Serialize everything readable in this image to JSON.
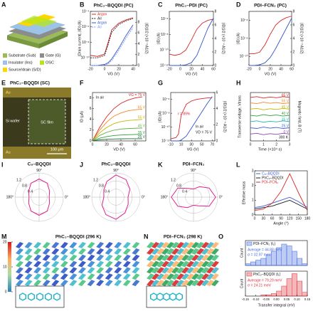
{
  "panels": {
    "A": {
      "label": "A",
      "legend": [
        {
          "name": "Substrate (Sub)",
          "color": "#9bbb59"
        },
        {
          "name": "Gate (G)",
          "color": "#8c8c8c"
        },
        {
          "name": "Insulator (Ins)",
          "color": "#9dc3e6"
        },
        {
          "name": "OSC",
          "color": "#b5e61d"
        },
        {
          "name": "Source/drain (S/D)",
          "color": "#ffd700"
        }
      ]
    },
    "B": {
      "label": "B",
      "type": "line",
      "title": "PhC₂–BQQDI (PC)",
      "x_label": "VG (V)",
      "y_label": "|Drain current|, |ID| (A)",
      "y2_label": "|ID|1/2 (×10⁻³ A1/2)",
      "log_y": true,
      "legend": "upper left",
      "x": [
        -20,
        -10,
        0,
        5,
        10,
        20,
        30,
        40
      ],
      "xlim": [
        -20,
        45
      ],
      "xticks": [
        -20,
        0,
        20,
        40
      ],
      "ylim": [
        1e-11,
        0.0001
      ],
      "yticks": [
        {
          "value": 1e-10,
          "label": "10⁻¹⁰"
        },
        {
          "value": 1e-08,
          "label": "10⁻⁸"
        },
        {
          "value": 1e-06,
          "label": "10⁻⁶"
        },
        {
          "value": 0.0001,
          "label": "10⁻⁴"
        }
      ],
      "y2lim": [
        0,
        10
      ],
      "y2ticks": [
        0,
        2,
        4,
        6,
        8
      ],
      "series": [
        {
          "name": "Argon",
          "color": "#d62728",
          "values": [
            2e-10,
            1.5e-10,
            3e-10,
            1e-08,
            4e-07,
            3e-06,
            8e-06,
            1.5e-05
          ]
        },
        {
          "name": "Air",
          "color": "#1a1a1a",
          "dash": true,
          "values": [
            1e-10,
            1e-10,
            2e-10,
            5e-09,
            2e-07,
            2e-06,
            6e-06,
            1.2e-05
          ]
        },
        {
          "name": "Argon",
          "color": "#3355cc",
          "axis": "y2",
          "values": [
            0,
            0,
            0.2,
            0.5,
            1.2,
            3.2,
            5.5,
            7.5
          ]
        },
        {
          "name": "Air",
          "color": "#7799ee",
          "axis": "y2",
          "dash": true,
          "values": [
            0,
            0,
            0.1,
            0.3,
            0.9,
            2.8,
            5,
            7
          ]
        }
      ]
    },
    "C": {
      "label": "C",
      "type": "line",
      "title": "PhC₂–PDI (PC)",
      "x_label": "VG (V)",
      "y_label": "|ID| (A)",
      "y2_label": "|ID|1/2 (×10⁻⁴ A1/2)",
      "log_y": true,
      "x": [
        -20,
        -10,
        0,
        10,
        20,
        30,
        40,
        50,
        60
      ],
      "xlim": [
        -20,
        60
      ],
      "xticks": [
        -20,
        0,
        20,
        40,
        60
      ],
      "ylim": [
        1e-12,
        1e-05
      ],
      "yticks": [
        {
          "value": 1e-12,
          "label": "10⁻¹²"
        },
        {
          "value": 1e-10,
          "label": "10⁻¹⁰"
        },
        {
          "value": 1e-08,
          "label": "10⁻⁸"
        },
        {
          "value": 1e-06,
          "label": "10⁻⁶"
        }
      ],
      "y2lim": [
        0,
        8
      ],
      "y2ticks": [
        0,
        2,
        4,
        6,
        8
      ],
      "series": [
        {
          "color": "#d62728",
          "values": [
            3e-11,
            2e-11,
            3e-11,
            1e-10,
            2e-09,
            5e-08,
            3e-07,
            7e-07,
            1e-06
          ]
        },
        {
          "color": "#3355cc",
          "axis": "y2",
          "values": [
            0,
            0,
            0,
            0.1,
            0.4,
            1.5,
            3.5,
            5.5,
            7
          ]
        }
      ]
    },
    "D": {
      "label": "D",
      "type": "line",
      "title": "PDI–FCN₂ (PC)",
      "x_label": "VG (V)",
      "y_label": "|ID| (A)",
      "y2_label": "|ID|1/2 (×10⁻³ A1/2)",
      "log_y": true,
      "x": [
        -20,
        -10,
        0,
        10,
        20,
        30,
        40,
        50,
        60
      ],
      "xlim": [
        -20,
        60
      ],
      "xticks": [
        -20,
        0,
        20,
        40,
        60
      ],
      "ylim": [
        1e-11,
        1e-05
      ],
      "yticks": [
        {
          "value": 1e-10,
          "label": "10⁻¹⁰"
        },
        {
          "value": 1e-08,
          "label": "10⁻⁸"
        },
        {
          "value": 1e-06,
          "label": "10⁻⁶"
        }
      ],
      "y2lim": [
        0,
        8
      ],
      "y2ticks": [
        0,
        2,
        4,
        6,
        8
      ],
      "series": [
        {
          "color": "#d62728",
          "values": [
            2e-10,
            2e-10,
            3e-10,
            2e-09,
            3e-08,
            3e-07,
            1e-06,
            2e-06,
            3e-06
          ]
        },
        {
          "color": "#3355cc",
          "axis": "y2",
          "values": [
            0,
            0,
            0.1,
            0.4,
            1.2,
            2.5,
            4,
            5.5,
            7
          ]
        }
      ]
    },
    "E": {
      "label": "E",
      "title": "PhC₂–BQQDI (SC)",
      "labels": {
        "au_top": "Au",
        "wafer": "Si wafer",
        "film": "SC film",
        "au_bottom": "Au",
        "scale": "100 μm"
      }
    },
    "F": {
      "label": "F",
      "type": "line",
      "x_label": "VD (V)",
      "y_label": "ID (μA)",
      "legend": "line-end",
      "annotations": [
        "In air"
      ],
      "x": [
        0,
        10,
        20,
        30,
        40,
        50,
        60,
        70
      ],
      "xlim": [
        0,
        75
      ],
      "xticks": [
        0,
        20,
        40,
        60
      ],
      "ylim": [
        0,
        9
      ],
      "yticks": [
        0,
        2,
        4,
        6,
        8
      ],
      "series": [
        {
          "name": "VG = 75 V",
          "color": "#d62728",
          "values": [
            0,
            2.5,
            4.5,
            6,
            7,
            7.6,
            8,
            8.2
          ]
        },
        {
          "name": "65 V",
          "color": "#f08a24",
          "values": [
            0,
            2,
            3.5,
            4.6,
            5.2,
            5.6,
            5.8,
            5.9
          ]
        },
        {
          "name": "55 V",
          "color": "#c8b400",
          "values": [
            0,
            1.5,
            2.5,
            3.2,
            3.6,
            3.8,
            3.9,
            4
          ]
        },
        {
          "name": "45 V",
          "color": "#6ab04c",
          "values": [
            0,
            1,
            1.6,
            2,
            2.2,
            2.3,
            2.35,
            2.4
          ]
        },
        {
          "name": "35 V",
          "color": "#2e9e3e",
          "values": [
            0,
            0.5,
            0.8,
            1,
            1.1,
            1.15,
            1.2,
            1.2
          ]
        },
        {
          "name": "25 V",
          "color": "#1f6f3a",
          "values": [
            0,
            0.2,
            0.3,
            0.35,
            0.38,
            0.4,
            0.4,
            0.4
          ]
        }
      ]
    },
    "G": {
      "label": "G",
      "type": "line",
      "x_label": "VG (V)",
      "y_label": "|ID| (A)",
      "y2_label": "|ID|1/2 (×10⁻⁴ A1/2)",
      "log_y": true,
      "annotations": [
        "r = 89%",
        "In air",
        "VD = 75 V"
      ],
      "x": [
        -10,
        0,
        5,
        10,
        20,
        30,
        40,
        50,
        60,
        70
      ],
      "xlim": [
        -10,
        75
      ],
      "xticks": [
        -10,
        10,
        30,
        50,
        70
      ],
      "ylim": [
        1e-12,
        1e-05
      ],
      "yticks": [
        {
          "value": 1e-12,
          "label": "10⁻¹²"
        },
        {
          "value": 1e-10,
          "label": "10⁻¹⁰"
        },
        {
          "value": 1e-08,
          "label": "10⁻⁸"
        },
        {
          "value": 1e-06,
          "label": "10⁻⁶"
        }
      ],
      "y2lim": [
        0,
        6
      ],
      "y2ticks": [
        0,
        2,
        4,
        6
      ],
      "series": [
        {
          "color": "#d62728",
          "values": [
            2e-12,
            3e-12,
            1e-11,
            5e-09,
            2e-07,
            6e-07,
            1e-06,
            1.3e-06,
            1.6e-06,
            1.8e-06
          ]
        },
        {
          "color": "#3355cc",
          "axis": "y2",
          "values": [
            0,
            0,
            0,
            0.1,
            0.6,
            1.6,
            2.6,
            3.6,
            4.6,
            5.5
          ]
        }
      ]
    },
    "H": {
      "label": "H",
      "type": "line",
      "x_label": "Time (×10⁴ s)",
      "y_label": "Transverse voltage, Vtrans",
      "y2_label": "Magnetic field, B (T)",
      "legend": "line-end",
      "annotations": [
        "300 K"
      ],
      "x": [
        0,
        0.5,
        1,
        1.5,
        2,
        2.5,
        3
      ],
      "xlim": [
        0,
        3
      ],
      "xticks": [
        0,
        1,
        2,
        3
      ],
      "ylim": [
        0,
        7
      ],
      "series": [
        {
          "name": "65 V",
          "color": "#d62728",
          "values": [
            6.3,
            6.4,
            6.2,
            6.35,
            6.25,
            6.4,
            6.3
          ]
        },
        {
          "name": "55 V",
          "color": "#f08a24",
          "values": [
            5.5,
            5.4,
            5.6,
            5.45,
            5.55,
            5.4,
            5.5
          ]
        },
        {
          "name": "45 V",
          "color": "#c8b400",
          "values": [
            4.6,
            4.7,
            4.5,
            4.65,
            4.55,
            4.7,
            4.6
          ]
        },
        {
          "name": "40 V",
          "color": "#2e9e3e",
          "values": [
            3.7,
            3.6,
            3.8,
            3.65,
            3.75,
            3.6,
            3.7
          ]
        },
        {
          "name": "35 V",
          "color": "#20b2aa",
          "values": [
            2.8,
            2.9,
            2.7,
            2.85,
            2.75,
            2.9,
            2.8
          ]
        },
        {
          "name": "25 V",
          "color": "#3b5bdb",
          "values": [
            1.9,
            1.8,
            2.0,
            1.85,
            1.95,
            1.8,
            1.9
          ]
        },
        {
          "name": "0 V",
          "color": "#8e44ad",
          "values": [
            1.0,
            1.1,
            0.9,
            1.05,
            0.95,
            1.1,
            1.0
          ]
        }
      ]
    },
    "I": {
      "label": "I",
      "type": "polar",
      "title": "C₈–BQQDI",
      "angle_labels": {
        "top": "90°",
        "right": "0°",
        "left": "180°"
      },
      "rlim": [
        0,
        1.2
      ],
      "rticks": [
        0.4,
        0.8,
        1.2
      ],
      "angles": [
        0,
        30,
        60,
        90,
        120,
        150,
        180,
        210,
        240,
        270,
        300,
        330
      ],
      "series": [
        {
          "color": "#e0218a",
          "values": [
            0.5,
            0.6,
            0.8,
            0.9,
            0.8,
            0.6,
            0.5,
            0.6,
            0.8,
            0.9,
            0.8,
            0.6
          ]
        }
      ]
    },
    "J": {
      "label": "J",
      "type": "polar",
      "title": "PhC₂–BQQDI",
      "angle_labels": {
        "top": "90°",
        "right": "0°",
        "left": "180°"
      },
      "rlim": [
        0,
        1.2
      ],
      "rticks": [
        0.4,
        0.8,
        1.2
      ],
      "angles": [
        0,
        30,
        60,
        90,
        120,
        150,
        180,
        210,
        240,
        270,
        300,
        330
      ],
      "series": [
        {
          "color": "#e0218a",
          "values": [
            0.6,
            0.8,
            1.0,
            1.1,
            0.9,
            0.7,
            0.6,
            0.8,
            1.0,
            1.1,
            0.9,
            0.7
          ]
        }
      ]
    },
    "K": {
      "label": "K",
      "type": "polar",
      "title": "PDI–FCN₂",
      "angle_labels": {
        "top": "90°",
        "right": "0°",
        "left": "180°"
      },
      "rlim": [
        0,
        1.2
      ],
      "rticks": [
        0.4,
        0.8,
        1.2
      ],
      "angles": [
        0,
        30,
        60,
        90,
        120,
        150,
        180,
        210,
        240,
        270,
        300,
        330
      ],
      "series": [
        {
          "color": "#e0218a",
          "values": [
            1.1,
            0.9,
            0.6,
            0.4,
            0.5,
            0.9,
            1.1,
            0.9,
            0.6,
            0.4,
            0.5,
            0.9
          ]
        }
      ]
    },
    "L": {
      "label": "L",
      "type": "line",
      "x_label": "Angle (°)",
      "y_label": "Effective mass",
      "legend": "upper left",
      "x": [
        0,
        30,
        60,
        90,
        120,
        150,
        180
      ],
      "xlim": [
        0,
        180
      ],
      "xticks": [
        0,
        30,
        60,
        90,
        120,
        150,
        180
      ],
      "ylim": [
        0,
        3
      ],
      "yticks": [
        0,
        1,
        2,
        3
      ],
      "series": [
        {
          "name": "C₈–BQQDI",
          "color": "#3b5bdb",
          "values": [
            0.5,
            0.6,
            0.8,
            1.0,
            1.2,
            0.9,
            0.5
          ]
        },
        {
          "name": "PhC₂–BQQDI",
          "color": "#1a1a1a",
          "values": [
            0.4,
            0.5,
            0.6,
            0.8,
            1.0,
            0.7,
            0.4
          ]
        },
        {
          "name": "PDI–FCN₂",
          "color": "#d62728",
          "values": [
            0.3,
            0.4,
            0.8,
            1.6,
            2.8,
            1.5,
            0.3
          ]
        }
      ]
    },
    "M": {
      "label": "M",
      "title": "PhC₂–BQQDI (296 K)",
      "clim": [
        0,
        20
      ],
      "colorbar_ticks": [
        0,
        10,
        20
      ]
    },
    "N": {
      "label": "N",
      "title": "PDI–FCN₂ (298 K)"
    },
    "O": {
      "label": "O",
      "type": "histogram",
      "x_label": "Transfer integral (eV)",
      "xlim": [
        -0.15,
        0.15
      ],
      "xticks": [
        -0.15,
        {
          "value": -0.1,
          "label": "-0.10"
        },
        -0.05,
        {
          "value": 0,
          "label": "0.00"
        },
        0.05,
        {
          "value": 0.1,
          "label": "0.10"
        },
        0.15
      ],
      "bins": [
        -0.15,
        -0.125,
        -0.1,
        -0.075,
        -0.05,
        -0.025,
        0,
        0.025,
        0.05,
        0.075,
        0.1,
        0.125,
        0.15
      ],
      "plots": [
        {
          "name": "PDI–FCN₂ (t₁)",
          "color": "#4169e1",
          "y_label": "Count",
          "ylim": [
            0,
            14
          ],
          "counts": [
            1,
            2,
            3,
            4,
            6,
            8,
            10,
            12,
            11,
            8,
            4,
            1
          ],
          "annotations": [
            "Average = 44.88 meV",
            "σ = 32.97 meV"
          ]
        },
        {
          "name": "PhC₂–BQQDI (t₁)",
          "color": "#e0303a",
          "y_label": "Count",
          "ylim": [
            0,
            20
          ],
          "counts": [
            0,
            0,
            0,
            1,
            1,
            2,
            4,
            8,
            14,
            18,
            12,
            3
          ],
          "annotations": [
            "Average = 79.29 meV",
            "σ = 24.21 meV"
          ]
        }
      ]
    }
  }
}
